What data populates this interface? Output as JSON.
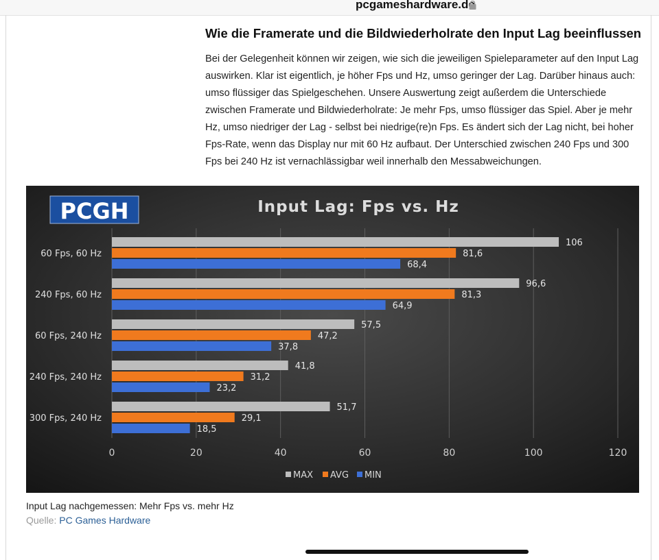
{
  "browser": {
    "domain": "pcgameshardware.de"
  },
  "article": {
    "headline": "Wie die Framerate und die Bildwiederholrate den Input Lag beeinflussen",
    "paragraph": "Bei der Gelegenheit können wir zeigen, wie sich die jeweiligen Spieleparameter auf den Input Lag auswirken. Klar ist eigentlich, je höher Fps und Hz, umso geringer der Lag. Darüber hinaus auch: umso flüssiger das Spielgeschehen. Unsere Auswertung zeigt außerdem die Unterschiede zwischen Framerate und Bildwiederholrate: Je mehr Fps, umso flüssiger das Spiel. Aber je mehr Hz, umso niedriger der Lag - selbst bei niedrige(re)n Fps. Es ändert sich der Lag nicht, bei hoher Fps-Rate, wenn das Display nur mit 60 Hz aufbaut. Der Unterschied zwischen 240 Fps und 300 Fps bei 240 Hz ist vernachlässigbar weil innerhalb den Messabweichungen."
  },
  "figure": {
    "logo_text": "PCGH",
    "caption": "Input Lag nachgemessen: Mehr Fps vs. mehr Hz",
    "source_label": "Quelle:",
    "source_link": "PC Games Hardware"
  },
  "chart_data": {
    "type": "bar",
    "orientation": "horizontal",
    "title": "Input Lag: Fps vs. Hz",
    "categories": [
      "60 Fps, 60 Hz",
      "240 Fps, 60 Hz",
      "60 Fps, 240 Hz",
      "240 Fps, 240 Hz",
      "300 Fps, 240 Hz"
    ],
    "series": [
      {
        "name": "MAX",
        "color": "#bdbdbd",
        "values": [
          106,
          96.6,
          57.5,
          41.8,
          51.7
        ],
        "labels": [
          "106",
          "96,6",
          "57,5",
          "41,8",
          "51,7"
        ]
      },
      {
        "name": "AVG",
        "color": "#f07a1e",
        "values": [
          81.6,
          81.3,
          47.2,
          31.2,
          29.1
        ],
        "labels": [
          "81,6",
          "81,3",
          "47,2",
          "31,2",
          "29,1"
        ]
      },
      {
        "name": "MIN",
        "color": "#3d6fd6",
        "values": [
          68.4,
          64.9,
          37.8,
          23.2,
          18.5
        ],
        "labels": [
          "68,4",
          "64,9",
          "37,8",
          "23,2",
          "18,5"
        ]
      }
    ],
    "xlim": [
      0,
      120
    ],
    "xticks": [
      0,
      20,
      40,
      60,
      80,
      100,
      120
    ],
    "grid": true,
    "legend": "bottom-center"
  }
}
